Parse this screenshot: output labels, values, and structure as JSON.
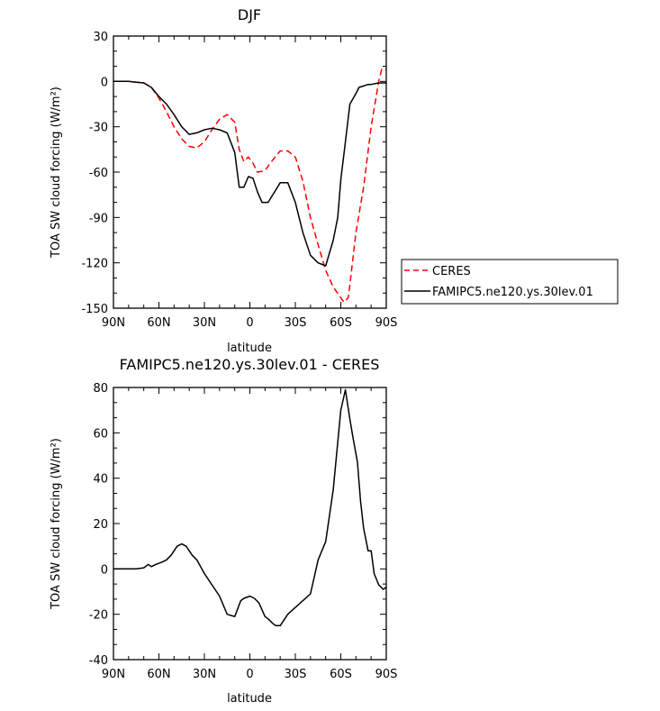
{
  "chart_data": [
    {
      "type": "line",
      "title": "DJF",
      "xlabel": "latitude",
      "ylabel": "TOA SW cloud forcing (W/m²)",
      "xlim": [
        -90,
        90
      ],
      "ylim": [
        -150,
        30
      ],
      "x_ticks": [
        -90,
        -60,
        -30,
        0,
        30,
        60,
        90
      ],
      "x_tick_labels": [
        "90N",
        "60N",
        "30N",
        "0",
        "30S",
        "60S",
        "90S"
      ],
      "y_ticks": [
        -150,
        -120,
        -90,
        -60,
        -30,
        0,
        30
      ],
      "y_tick_labels": [
        "-150",
        "-120",
        "-90",
        "-60",
        "-30",
        "0",
        "30"
      ],
      "legend_position": "right-outside",
      "series": [
        {
          "name": "CERES",
          "color": "#ff0000",
          "dash": "dashed",
          "x": [
            -90,
            -80,
            -75,
            -70,
            -65,
            -60,
            -55,
            -50,
            -45,
            -40,
            -35,
            -30,
            -25,
            -20,
            -15,
            -10,
            -7,
            -4,
            -1,
            2,
            5,
            10,
            15,
            20,
            25,
            30,
            35,
            40,
            45,
            50,
            55,
            60,
            62,
            65,
            70,
            75,
            80,
            85,
            87,
            90
          ],
          "y": [
            0,
            0,
            -0.5,
            -1,
            -4,
            -11,
            -20,
            -30,
            -38,
            -43,
            -44,
            -40,
            -32,
            -25,
            -22,
            -27,
            -45,
            -53,
            -50,
            -54,
            -60,
            -59,
            -52,
            -46,
            -46,
            -50,
            -66,
            -90,
            -108,
            -125,
            -136,
            -143,
            -146,
            -143,
            -100,
            -70,
            -30,
            0,
            8,
            8
          ]
        },
        {
          "name": "FAMIPC5.ne120.ys.30lev.01",
          "color": "#000000",
          "dash": "solid",
          "x": [
            -90,
            -80,
            -75,
            -70,
            -65,
            -60,
            -55,
            -50,
            -45,
            -40,
            -35,
            -30,
            -25,
            -20,
            -15,
            -10,
            -7,
            -4,
            -1,
            2,
            5,
            8,
            12,
            17,
            20,
            25,
            30,
            35,
            40,
            45,
            50,
            55,
            58,
            60,
            63,
            66,
            70,
            72,
            75,
            78,
            80,
            85,
            90
          ],
          "y": [
            0,
            0,
            -0.5,
            -1,
            -4,
            -10,
            -15,
            -22,
            -30,
            -35,
            -34,
            -32,
            -31,
            -32,
            -34,
            -47,
            -70,
            -70,
            -63,
            -64,
            -73,
            -80,
            -80,
            -72,
            -67,
            -67,
            -80,
            -100,
            -115,
            -120,
            -122,
            -105,
            -90,
            -65,
            -40,
            -15,
            -8,
            -4,
            -3,
            -2,
            -2,
            -1,
            -1
          ]
        }
      ]
    },
    {
      "type": "line",
      "title": "FAMIPC5.ne120.ys.30lev.01 - CERES",
      "xlabel": "latitude",
      "ylabel": "TOA SW cloud forcing (W/m²)",
      "xlim": [
        -90,
        90
      ],
      "ylim": [
        -40,
        80
      ],
      "x_ticks": [
        -90,
        -60,
        -30,
        0,
        30,
        60,
        90
      ],
      "x_tick_labels": [
        "90N",
        "60N",
        "30N",
        "0",
        "30S",
        "60S",
        "90S"
      ],
      "y_ticks": [
        -40,
        -20,
        0,
        20,
        40,
        60,
        80
      ],
      "y_tick_labels": [
        "-40",
        "-20",
        "0",
        "20",
        "40",
        "60",
        "80"
      ],
      "series": [
        {
          "color": "#000000",
          "dash": "solid",
          "x": [
            -90,
            -80,
            -75,
            -70,
            -67,
            -65,
            -62,
            -58,
            -55,
            -52,
            -48,
            -45,
            -42,
            -38,
            -35,
            -30,
            -25,
            -20,
            -15,
            -10,
            -6,
            -4,
            0,
            3,
            6,
            10,
            12,
            15,
            17,
            20,
            25,
            30,
            35,
            40,
            45,
            50,
            55,
            60,
            63,
            66,
            68,
            71,
            73,
            75,
            78,
            80,
            82,
            85,
            88,
            90
          ],
          "y": [
            0,
            0,
            0,
            0.5,
            2,
            1,
            2,
            3,
            4,
            6,
            10,
            11,
            10,
            6,
            4,
            -2,
            -7,
            -12,
            -20,
            -21,
            -14,
            -13,
            -12,
            -13,
            -15,
            -21,
            -22,
            -24,
            -25,
            -25,
            -20,
            -17,
            -14,
            -11,
            4,
            12,
            35,
            70,
            79,
            66,
            58,
            47,
            30,
            18,
            8,
            8,
            -2,
            -7,
            -9,
            -8
          ]
        }
      ]
    }
  ]
}
